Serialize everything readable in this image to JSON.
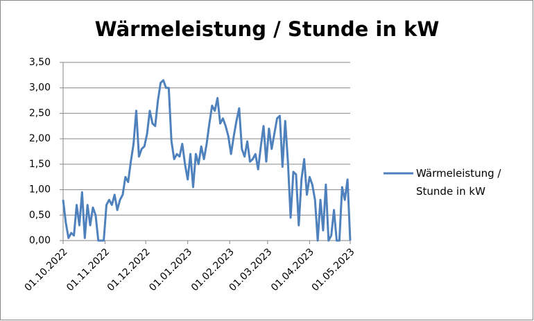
{
  "chart_data": {
    "type": "line",
    "title": "Wärmeleistung / Stunde in kW",
    "x": [
      "2022-10-01",
      "2022-10-03",
      "2022-10-05",
      "2022-10-07",
      "2022-10-09",
      "2022-10-11",
      "2022-10-13",
      "2022-10-15",
      "2022-10-17",
      "2022-10-19",
      "2022-10-21",
      "2022-10-23",
      "2022-10-25",
      "2022-10-27",
      "2022-10-29",
      "2022-10-31",
      "2022-11-02",
      "2022-11-04",
      "2022-11-06",
      "2022-11-08",
      "2022-11-10",
      "2022-11-12",
      "2022-11-14",
      "2022-11-16",
      "2022-11-18",
      "2022-11-20",
      "2022-11-22",
      "2022-11-24",
      "2022-11-26",
      "2022-11-28",
      "2022-11-30",
      "2022-12-02",
      "2022-12-04",
      "2022-12-06",
      "2022-12-08",
      "2022-12-10",
      "2022-12-12",
      "2022-12-14",
      "2022-12-16",
      "2022-12-18",
      "2022-12-20",
      "2022-12-22",
      "2022-12-24",
      "2022-12-26",
      "2022-12-28",
      "2022-12-30",
      "2023-01-01",
      "2023-01-03",
      "2023-01-05",
      "2023-01-07",
      "2023-01-09",
      "2023-01-11",
      "2023-01-13",
      "2023-01-15",
      "2023-01-17",
      "2023-01-19",
      "2023-01-21",
      "2023-01-23",
      "2023-01-25",
      "2023-01-27",
      "2023-01-29",
      "2023-01-31",
      "2023-02-02",
      "2023-02-04",
      "2023-02-06",
      "2023-02-08",
      "2023-02-10",
      "2023-02-12",
      "2023-02-14",
      "2023-02-16",
      "2023-02-18",
      "2023-02-20",
      "2023-02-22",
      "2023-02-24",
      "2023-02-26",
      "2023-02-28",
      "2023-03-02",
      "2023-03-04",
      "2023-03-06",
      "2023-03-08",
      "2023-03-10",
      "2023-03-12",
      "2023-03-14",
      "2023-03-16",
      "2023-03-18",
      "2023-03-20",
      "2023-03-22",
      "2023-03-24",
      "2023-03-26",
      "2023-03-28",
      "2023-03-30",
      "2023-04-01",
      "2023-04-03",
      "2023-04-05",
      "2023-04-07",
      "2023-04-09",
      "2023-04-11",
      "2023-04-13",
      "2023-04-15",
      "2023-04-17",
      "2023-04-19",
      "2023-04-21",
      "2023-04-23",
      "2023-04-25",
      "2023-04-27",
      "2023-04-29",
      "2023-05-01"
    ],
    "series": [
      {
        "name": "Wärmeleistung / Stunde in kW",
        "color": "#4f81bd",
        "values": [
          0.8,
          0.35,
          0.05,
          0.15,
          0.1,
          0.7,
          0.3,
          0.95,
          0.05,
          0.7,
          0.3,
          0.65,
          0.5,
          0.0,
          0.0,
          0.0,
          0.7,
          0.8,
          0.7,
          0.9,
          0.6,
          0.8,
          0.9,
          1.25,
          1.15,
          1.55,
          1.9,
          2.55,
          1.65,
          1.8,
          1.85,
          2.1,
          2.55,
          2.3,
          2.25,
          2.75,
          3.1,
          3.15,
          3.0,
          3.0,
          1.95,
          1.6,
          1.7,
          1.65,
          1.9,
          1.5,
          1.2,
          1.7,
          1.05,
          1.7,
          1.5,
          1.85,
          1.6,
          1.9,
          2.3,
          2.65,
          2.55,
          2.8,
          2.3,
          2.4,
          2.25,
          2.05,
          1.7,
          2.05,
          2.35,
          2.6,
          1.8,
          1.65,
          1.95,
          1.55,
          1.6,
          1.7,
          1.4,
          1.85,
          2.25,
          1.55,
          2.2,
          1.8,
          2.1,
          2.4,
          2.45,
          1.45,
          2.35,
          1.55,
          0.45,
          1.35,
          1.3,
          0.3,
          1.2,
          1.6,
          0.9,
          1.25,
          1.1,
          0.8,
          0.0,
          0.8,
          0.2,
          1.1,
          0.0,
          0.1,
          0.6,
          0.0,
          0.0,
          1.05,
          0.8,
          1.2,
          0.0
        ]
      }
    ],
    "xlim": [
      "2022-10-01",
      "2023-05-01"
    ],
    "xticks": [
      {
        "value": "2022-10-01",
        "label": "01.10.2022"
      },
      {
        "value": "2022-11-01",
        "label": "01.11.2022"
      },
      {
        "value": "2022-12-01",
        "label": "01.12.2022"
      },
      {
        "value": "2023-01-01",
        "label": "01.01.2023"
      },
      {
        "value": "2023-02-01",
        "label": "01.02.2023"
      },
      {
        "value": "2023-03-01",
        "label": "01.03.2023"
      },
      {
        "value": "2023-04-01",
        "label": "01.04.2023"
      },
      {
        "value": "2023-05-01",
        "label": "01.05.2023"
      }
    ],
    "ylim": [
      0,
      3.5
    ],
    "yticks": [
      {
        "value": 0,
        "label": "0,00"
      },
      {
        "value": 0.5,
        "label": "0,50"
      },
      {
        "value": 1,
        "label": "1,00"
      },
      {
        "value": 1.5,
        "label": "1,50"
      },
      {
        "value": 2,
        "label": "2,00"
      },
      {
        "value": 2.5,
        "label": "2,50"
      },
      {
        "value": 3,
        "label": "3,00"
      },
      {
        "value": 3.5,
        "label": "3,50"
      }
    ],
    "grid": true,
    "legend": "right"
  }
}
